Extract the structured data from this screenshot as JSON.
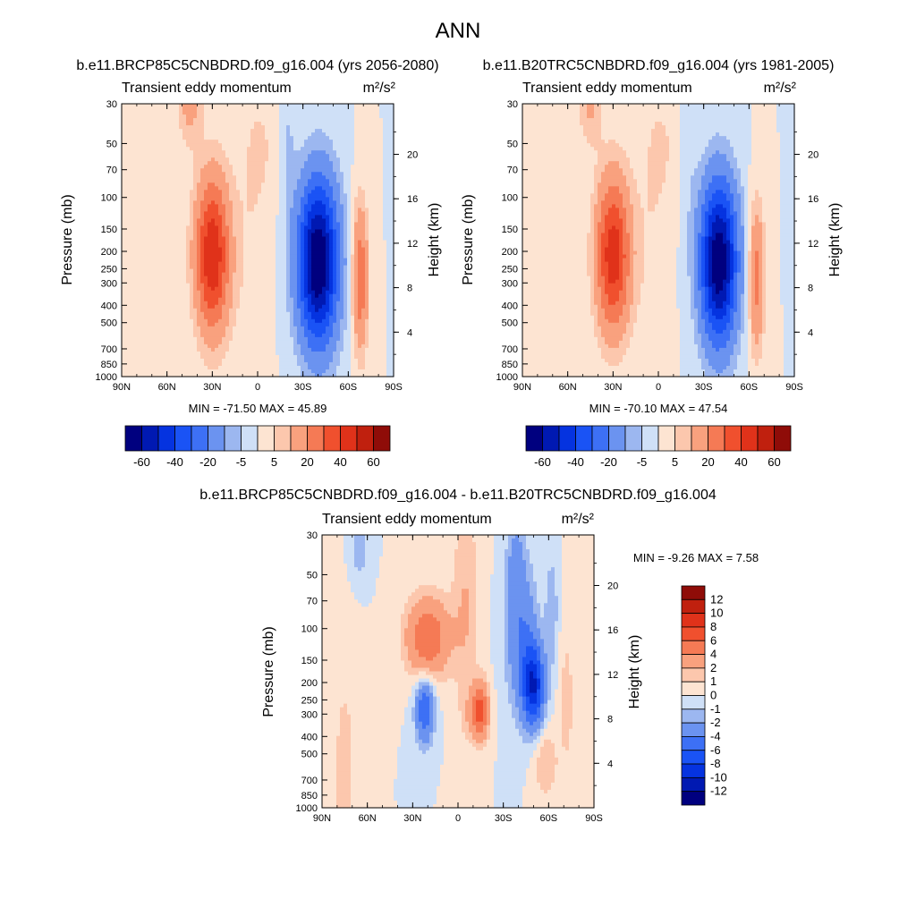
{
  "page_title": "ANN",
  "colors": {
    "neg": [
      "#00007f",
      "#0019b2",
      "#0533e0",
      "#1a53f5",
      "#3d70f5",
      "#6b93f0",
      "#9cb7f0",
      "#cfe0f7"
    ],
    "pos": [
      "#fde4d2",
      "#fcc7ad",
      "#f9a17e",
      "#f57a55",
      "#f0502e",
      "#e0321a",
      "#c0200e",
      "#8f0c08"
    ],
    "frame": "#000000"
  },
  "chart_data": [
    {
      "type": "heatmap",
      "title": "b.e11.BRCP85C5CNBDRD.f09_g16.004 (yrs 2056-2080)",
      "subtitle_left": "Transient eddy momentum",
      "units": "m²/s²",
      "ylabel": "Pressure (mb)",
      "ylabel_right": "Height (km)",
      "x_ticks": [
        "90N",
        "60N",
        "30N",
        "0",
        "30S",
        "60S",
        "90S"
      ],
      "y_ticks": [
        "30",
        "50",
        "70",
        "100",
        "150",
        "200",
        "250",
        "300",
        "400",
        "500",
        "700",
        "850",
        "1000"
      ],
      "y_ticks_right": [
        "20",
        "16",
        "12",
        "8",
        "4"
      ],
      "min_max_text": "MIN = -71.50  MAX =  45.89",
      "min": -71.5,
      "max": 45.89,
      "levels": [
        -70,
        -60,
        -50,
        -40,
        -30,
        -20,
        -10,
        -5,
        0,
        5,
        10,
        20,
        30,
        40,
        50,
        60,
        70
      ],
      "colorbar_labels": [
        "-60",
        "-40",
        "-20",
        "-5",
        "5",
        "20",
        "40",
        "60"
      ],
      "colorbar_orientation": "horizontal"
    },
    {
      "type": "heatmap",
      "title": "b.e11.B20TRC5CNBDRD.f09_g16.004 (yrs 1981-2005)",
      "subtitle_left": "Transient eddy momentum",
      "units": "m²/s²",
      "ylabel": "Pressure (mb)",
      "ylabel_right": "Height (km)",
      "x_ticks": [
        "90N",
        "60N",
        "30N",
        "0",
        "30S",
        "60S",
        "90S"
      ],
      "y_ticks": [
        "30",
        "50",
        "70",
        "100",
        "150",
        "200",
        "250",
        "300",
        "400",
        "500",
        "700",
        "850",
        "1000"
      ],
      "y_ticks_right": [
        "20",
        "16",
        "12",
        "8",
        "4"
      ],
      "min_max_text": "MIN = -70.10  MAX =  47.54",
      "min": -70.1,
      "max": 47.54,
      "levels": [
        -70,
        -60,
        -50,
        -40,
        -30,
        -20,
        -10,
        -5,
        0,
        5,
        10,
        20,
        30,
        40,
        50,
        60,
        70
      ],
      "colorbar_labels": [
        "-60",
        "-40",
        "-20",
        "-5",
        "5",
        "20",
        "40",
        "60"
      ],
      "colorbar_orientation": "horizontal"
    },
    {
      "type": "heatmap",
      "title": "b.e11.BRCP85C5CNBDRD.f09_g16.004 - b.e11.B20TRC5CNBDRD.f09_g16.004",
      "subtitle_left": "Transient eddy momentum",
      "units": "m²/s²",
      "ylabel": "Pressure (mb)",
      "ylabel_right": "Height (km)",
      "x_ticks": [
        "90N",
        "60N",
        "30N",
        "0",
        "30S",
        "60S",
        "90S"
      ],
      "y_ticks": [
        "30",
        "50",
        "70",
        "100",
        "150",
        "200",
        "250",
        "300",
        "400",
        "500",
        "700",
        "850",
        "1000"
      ],
      "y_ticks_right": [
        "20",
        "16",
        "12",
        "8",
        "4"
      ],
      "min_max_text": "MIN =  -9.26  MAX =   7.58",
      "min": -9.26,
      "max": 7.58,
      "levels": [
        -14,
        -12,
        -10,
        -8,
        -6,
        -4,
        -2,
        -1,
        0,
        1,
        2,
        4,
        6,
        8,
        10,
        12,
        14
      ],
      "colorbar_labels": [
        "12",
        "10",
        "8",
        "6",
        "4",
        "2",
        "1",
        "0",
        "-1",
        "-2",
        "-4",
        "-6",
        "-8",
        "-10",
        "-12"
      ],
      "colorbar_orientation": "vertical"
    }
  ]
}
